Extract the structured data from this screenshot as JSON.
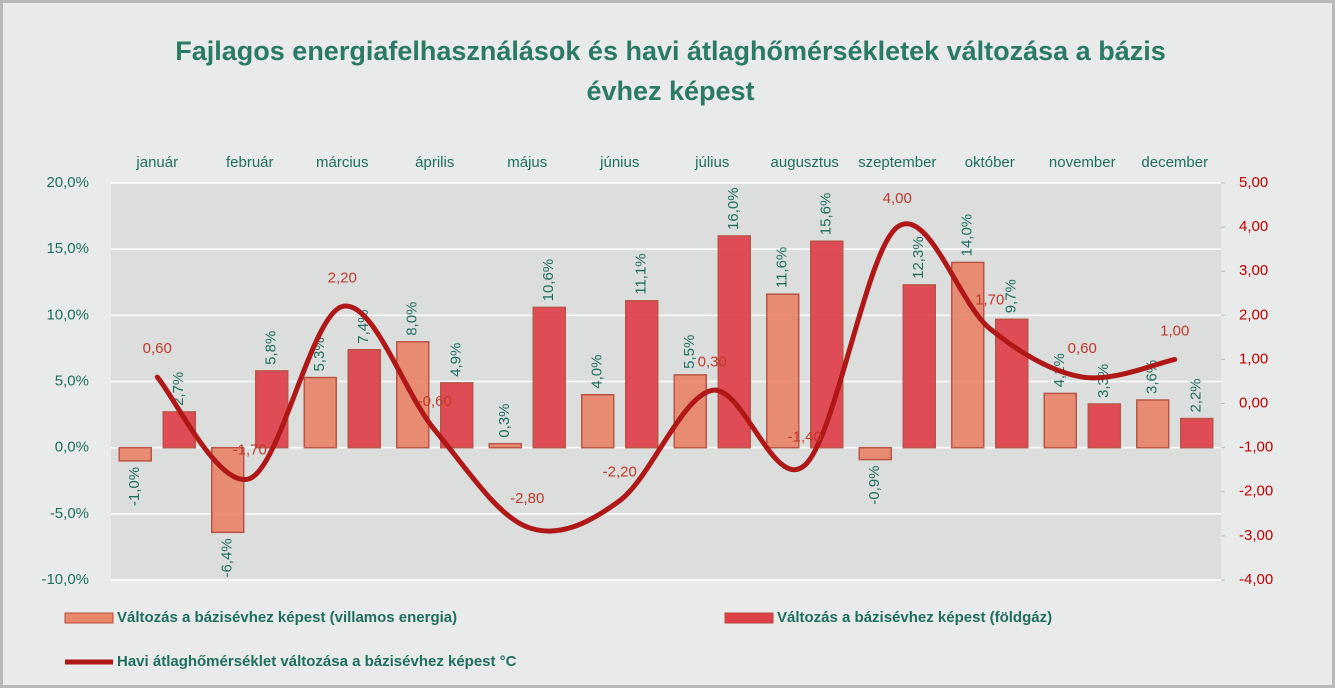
{
  "chart_data": {
    "type": "bar-line",
    "title": "Fajlagos energiafelhasználások és havi átlaghőmérsékletek  változása a bázis évhez képest",
    "categories": [
      "január",
      "február",
      "március",
      "április",
      "május",
      "június",
      "július",
      "augusztus",
      "szeptember",
      "október",
      "november",
      "december"
    ],
    "series": [
      {
        "name": "Változás a bázisévhez képest (villamos energia)",
        "type": "bar",
        "color": "#e8866a",
        "values": [
          -1.0,
          -6.4,
          5.3,
          8.0,
          0.3,
          4.0,
          5.5,
          11.6,
          -0.9,
          14.0,
          4.1,
          3.6
        ],
        "value_labels": [
          "-1,0%",
          "-6,4%",
          "5,3%",
          "8,0%",
          "0,3%",
          "4,0%",
          "5,5%",
          "11,6%",
          "-0,9%",
          "14,0%",
          "4,1%",
          "3,6%"
        ]
      },
      {
        "name": "Változás a bázisévhez képest (földgáz)",
        "type": "bar",
        "color": "#e0404a",
        "values": [
          2.7,
          5.8,
          7.4,
          4.9,
          10.6,
          11.1,
          16.0,
          15.6,
          12.3,
          9.7,
          3.3,
          2.2
        ],
        "value_labels": [
          "2,7%",
          "5,8%",
          "7,4%",
          "4,9%",
          "10,6%",
          "11,1%",
          "16,0%",
          "15,6%",
          "12,3%",
          "9,7%",
          "3,3%",
          "2,2%"
        ]
      },
      {
        "name": "Havi átlaghőmérséklet változása a bázisévhez képest °C",
        "type": "line",
        "axis": "y2",
        "color": "#b01818",
        "values": [
          0.6,
          -1.7,
          2.2,
          -0.6,
          -2.8,
          -2.2,
          0.3,
          -1.4,
          4.0,
          1.7,
          0.6,
          1.0
        ],
        "value_labels": [
          "0,60",
          "-1,70",
          "2,20",
          "-0,60",
          "-2,80",
          "-2,20",
          "0,30",
          "-1,40",
          "4,00",
          "1,70",
          "0,60",
          "1,00"
        ]
      }
    ],
    "ylim": [
      -10,
      20
    ],
    "yticks": [
      {
        "value": -10,
        "label": "-10,0%"
      },
      {
        "value": -5,
        "label": "-5,0%"
      },
      {
        "value": 0,
        "label": "0,0%"
      },
      {
        "value": 5,
        "label": "5,0%"
      },
      {
        "value": 10,
        "label": "10,0%"
      },
      {
        "value": 15,
        "label": "15,0%"
      },
      {
        "value": 20,
        "label": "20,0%"
      }
    ],
    "y2lim": [
      -4,
      5
    ],
    "y2ticks": [
      {
        "value": -4,
        "label": "-4,00"
      },
      {
        "value": -3,
        "label": "-3,00"
      },
      {
        "value": -2,
        "label": "-2,00"
      },
      {
        "value": -1,
        "label": "-1,00"
      },
      {
        "value": 0,
        "label": "0,00"
      },
      {
        "value": 1,
        "label": "1,00"
      },
      {
        "value": 2,
        "label": "2,00"
      },
      {
        "value": 3,
        "label": "3,00"
      },
      {
        "value": 4,
        "label": "4,00"
      },
      {
        "value": 5,
        "label": "5,00"
      }
    ],
    "grid": true
  }
}
